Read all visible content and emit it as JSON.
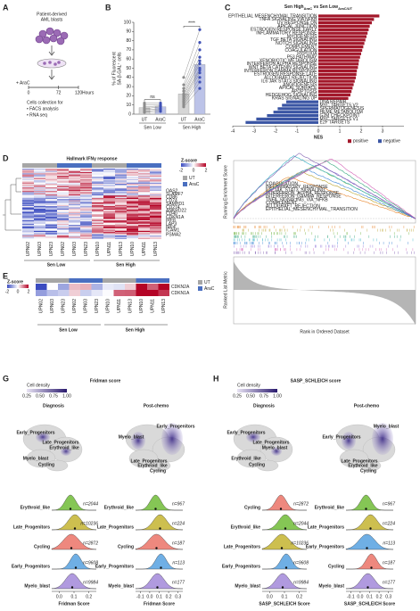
{
  "figure": {
    "panel_a": {
      "letter": "A",
      "title": [
        "Patient-derived",
        "AML blasts"
      ],
      "treatment": "+ AraC",
      "timeline": [
        0,
        72,
        120
      ],
      "timeline_unit": "Hours",
      "collection": [
        "Cells collection for",
        "• FACS analysis",
        "• RNA seq"
      ]
    },
    "panel_d": {
      "letter": "D",
      "title": "Hallmark IFNγ response",
      "legend_title": "Z-score",
      "scale_ticks": [
        -2,
        0,
        2
      ],
      "conditions": [
        "UT",
        "AraC"
      ],
      "condition_colors": [
        "#a6a6a6",
        "#4a6fc0"
      ],
      "samples": [
        "UPN02",
        "UPN03",
        "UPN23",
        "UPN02",
        "UPN03",
        "UPN23",
        "UPN10",
        "UPN11",
        "UPN13",
        "UPN10",
        "UPN11",
        "UPN13"
      ],
      "groups": [
        "Sen Low",
        "Sen High"
      ],
      "genes": [
        "OAS2",
        "SLAMF7",
        "CD86",
        "CD74",
        "SAMHD1",
        "CD274",
        "ANKRD22",
        "CD40",
        "CDKN1A",
        "IRF8",
        "LAP3",
        "IRF4",
        "ICAM1",
        "PSMA2"
      ]
    },
    "panel_e": {
      "letter": "E",
      "legend_title": "Z-score",
      "scale_ticks": [
        -2,
        0,
        2
      ],
      "genes": [
        "CDKN2A",
        "CDKN1A"
      ],
      "conditions": [
        "UT",
        "AraC"
      ],
      "samples": [
        "UPN02",
        "UPN03",
        "UPN23",
        "UPN02",
        "UPN03",
        "UPN23",
        "UPN10",
        "UPN11",
        "UPN13",
        "UPN10",
        "UPN11",
        "UPN13"
      ],
      "groups": [
        "Sen Low",
        "Sen High"
      ]
    },
    "panel_f": {
      "letter": "F",
      "ylabel_top": "Running Enrichment Score",
      "ylabel_bottom": "Ranked List Metric",
      "xlabel": "Rank in Ordered Dataset",
      "gene_sets": [
        {
          "name": "COAGULATION",
          "color": "#e8852b"
        },
        {
          "name": "INFLAMMATORY_RESPONSE",
          "color": "#b9a22c"
        },
        {
          "name": "IL6_JAK_STAT3_SIGNALING",
          "color": "#6fb33f"
        },
        {
          "name": "INTERFERON_ALPHA_RESPONSE",
          "color": "#2fa57a"
        },
        {
          "name": "INTERFERON_GAMMA_RESPONSE",
          "color": "#33b0c4"
        },
        {
          "name": "TNFA_SIGNALING_VIA_NFKB",
          "color": "#3c86d6"
        },
        {
          "name": "COMPLEMENT",
          "color": "#8a6fd6"
        },
        {
          "name": "ALLOGRAFT_REJECTION",
          "color": "#d464b8"
        },
        {
          "name": "EPITHELIAL_MESENCHYMAL_TRANSITION",
          "color": "#7d5bb0"
        }
      ]
    },
    "cluster_colors": {
      "Erythroid_like": "#78c043",
      "Late_Progenitors": "#c8b83c",
      "Cycling": "#ec7b70",
      "Early_Progenitors": "#5fa6e2",
      "Myelo_blast": "#a78fdb"
    },
    "panel_g": {
      "letter": "G",
      "title": "Fridman score",
      "density_label": "Cell density",
      "density_lim": [
        0.25,
        1
      ],
      "density_ticks": [
        0.25,
        {
          "value": 0.5,
          "label": "0.50"
        },
        0.75,
        {
          "value": 1,
          "label": "1.00"
        }
      ],
      "conditions": [
        {
          "name": "Diagnosis",
          "umap_labels": [
            "Early_Progenitors",
            "Late_Progenitors",
            "Erythroid_like",
            "Myelo_blast",
            "Cycling"
          ],
          "rows": [
            {
              "cluster": "Erythroid_like",
              "n": "n=2044"
            },
            {
              "cluster": "Late_Progenitors",
              "n": "n=10236"
            },
            {
              "cluster": "Cycling",
              "n": "n=2872"
            },
            {
              "cluster": "Early_Progenitors",
              "n": "n=9608"
            },
            {
              "cluster": "Myelo_blast",
              "n": "n=9984"
            }
          ],
          "xlim": [
            -0.05,
            0.25
          ],
          "xticks": [
            {
              "value": 0,
              "label": "0.0"
            },
            0.1,
            0.2
          ],
          "xlabel": "Fridman Score"
        },
        {
          "name": "Post-chemo",
          "umap_labels": [
            "Myelo_blast",
            "Early_Progenitors",
            "Late_Progenitors",
            "Erythroid_like",
            "Cycling"
          ],
          "rows": [
            {
              "cluster": "Erythroid_like",
              "n": "n=967"
            },
            {
              "cluster": "Late_Progenitors",
              "n": "n=224"
            },
            {
              "cluster": "Cycling",
              "n": "n=187"
            },
            {
              "cluster": "Early_Progenitors",
              "n": "n=113"
            },
            {
              "cluster": "Myelo_blast",
              "n": "n=177"
            }
          ],
          "xlim": [
            -0.15,
            0.35
          ],
          "xticks": [
            -0.1,
            {
              "value": 0,
              "label": "0.0"
            },
            0.1,
            0.2,
            0.3
          ],
          "xlabel": "Fridman Score"
        }
      ]
    },
    "panel_h": {
      "letter": "H",
      "title": "SASP_SCHLEICH score",
      "density_label": "Cell density",
      "density_lim": [
        0.25,
        1
      ],
      "density_ticks": [
        0.25,
        {
          "value": 0.5,
          "label": "0.50"
        },
        0.75,
        {
          "value": 1,
          "label": "1.00"
        }
      ],
      "conditions": [
        {
          "name": "Diagnosis",
          "umap_labels": [
            "Early_Progenitors",
            "Late_Progenitors",
            "Myelo_blast",
            "Erythroid_like",
            "Cycling"
          ],
          "rows": [
            {
              "cluster": "Cycling",
              "n": "n=2872"
            },
            {
              "cluster": "Erythroid_like",
              "n": "n=2044"
            },
            {
              "cluster": "Late_Progenitors",
              "n": "n=10236"
            },
            {
              "cluster": "Early_Progenitors",
              "n": "n=9608"
            },
            {
              "cluster": "Myelo_blast",
              "n": "n=9984"
            }
          ],
          "xlim": [
            -0.05,
            0.25
          ],
          "xticks": [
            {
              "value": 0,
              "label": "0.0"
            },
            0.1,
            0.2
          ],
          "xlabel": "SASP_SCHLEICH Score"
        },
        {
          "name": "Post-chemo",
          "umap_labels": [
            "Early_Progenitors",
            "Myelo_blast",
            "Late_Progenitors",
            "Erythroid_like",
            "Cycling"
          ],
          "rows": [
            {
              "cluster": "Erythroid_like",
              "n": "n=967"
            },
            {
              "cluster": "Late_Progenitors",
              "n": "n=224"
            },
            {
              "cluster": "Early_Progenitors",
              "n": "n=113"
            },
            {
              "cluster": "Cycling",
              "n": "n=187"
            },
            {
              "cluster": "Myelo_blast",
              "n": "n=177"
            }
          ],
          "xlim": [
            -0.15,
            0.35
          ],
          "xticks": [
            -0.1,
            {
              "value": 0,
              "label": "0.0"
            },
            0.1,
            0.2,
            0.3
          ],
          "xlabel": "SASP_SCHLEICH Score"
        }
      ]
    }
  },
  "chart_data": [
    {
      "type": "bar",
      "letter": "B",
      "ylabel": [
        "% of Fluorescent",
        "SA-β-GAL⁺ cells"
      ],
      "categories": [
        "UT",
        "AraC",
        "UT",
        "AraC"
      ],
      "groups": [
        "Sen Low",
        "Sen High"
      ],
      "values": [
        7,
        8,
        22,
        54
      ],
      "colors": [
        "#d6d6d6",
        "#bcc3e8"
      ],
      "point_colors": [
        "#8c8c8c",
        "#3f51b5"
      ],
      "points": [
        [
          2,
          3,
          5,
          6,
          8,
          10,
          12
        ],
        [
          3,
          5,
          6,
          8,
          9,
          10,
          12
        ],
        [
          8,
          10,
          12,
          14,
          16,
          18,
          20,
          22,
          25,
          28,
          32,
          40
        ],
        [
          28,
          35,
          40,
          45,
          48,
          50,
          55,
          58,
          62,
          70,
          78,
          92
        ]
      ],
      "significance": [
        "ns",
        "****"
      ],
      "ylim": [
        0,
        100
      ],
      "yticks": [
        0,
        10,
        20,
        30,
        40,
        50,
        60,
        70,
        80,
        90,
        100
      ]
    },
    {
      "type": "barh",
      "letter": "C",
      "title": [
        "Sen High",
        "AraC",
        " vs Sen Low",
        "AraC/UT"
      ],
      "categories": [
        "EPITHELIAL MESENCHYMAL TRANSITION",
        "TNFA SIGNALING VIA NFKB",
        "UV RESPONSE DN",
        "APICAL JUNCTION",
        "ESTROGEN RESPONSE EARLY",
        "INFLAMMATORY RESPONSE",
        "MYOGENESIS",
        "TGF BETA SIGNALING",
        "NOTCH SIGNALING",
        "COMPLEMENT",
        "COAGULATION",
        "HYPOXIA",
        "P53 PATHWAY",
        "XENOBIOTIC METABOLISM",
        "INTERFERON ALPHA RESPONSE",
        "WNT BETA CATENIN SIGNALING",
        "INTERFERON GAMMA RESPONSE",
        "ESTROGEN RESPONSE LATE",
        "ALLOGRAFT REJECTION",
        "IL6 JAK STAT3 SIGNALING",
        "ANGIOGENESIS",
        "APICAL SURFACE",
        "APOPTOSIS",
        "HEDGEHOG SIGNALING",
        "KRAS SIGNALING UP",
        "DNA REPAIR",
        "MYC TARGETS V2",
        "SPERMATOGENESIS",
        "HEME METABOLISM",
        "G2M CHECKPOINT",
        "MYC TARGETS V1",
        "E2F TARGETS"
      ],
      "values": [
        2.85,
        2.6,
        2.5,
        2.4,
        2.35,
        2.3,
        2.25,
        2.2,
        2.15,
        2.1,
        2.05,
        2.0,
        1.95,
        1.9,
        1.88,
        1.85,
        1.8,
        1.78,
        1.75,
        1.7,
        1.65,
        1.6,
        1.55,
        1.5,
        1.4,
        -1.5,
        -1.7,
        -1.9,
        -2.1,
        -2.4,
        -2.9,
        -3.4
      ],
      "series_names": [
        "positive",
        "negative"
      ],
      "colors": [
        "#a3182b",
        "#3a55a4"
      ],
      "xlabel": "NES",
      "xlim": [
        -4,
        4
      ],
      "xticks": [
        -4,
        -3,
        -2,
        -1,
        0,
        1,
        2,
        3
      ]
    }
  ]
}
